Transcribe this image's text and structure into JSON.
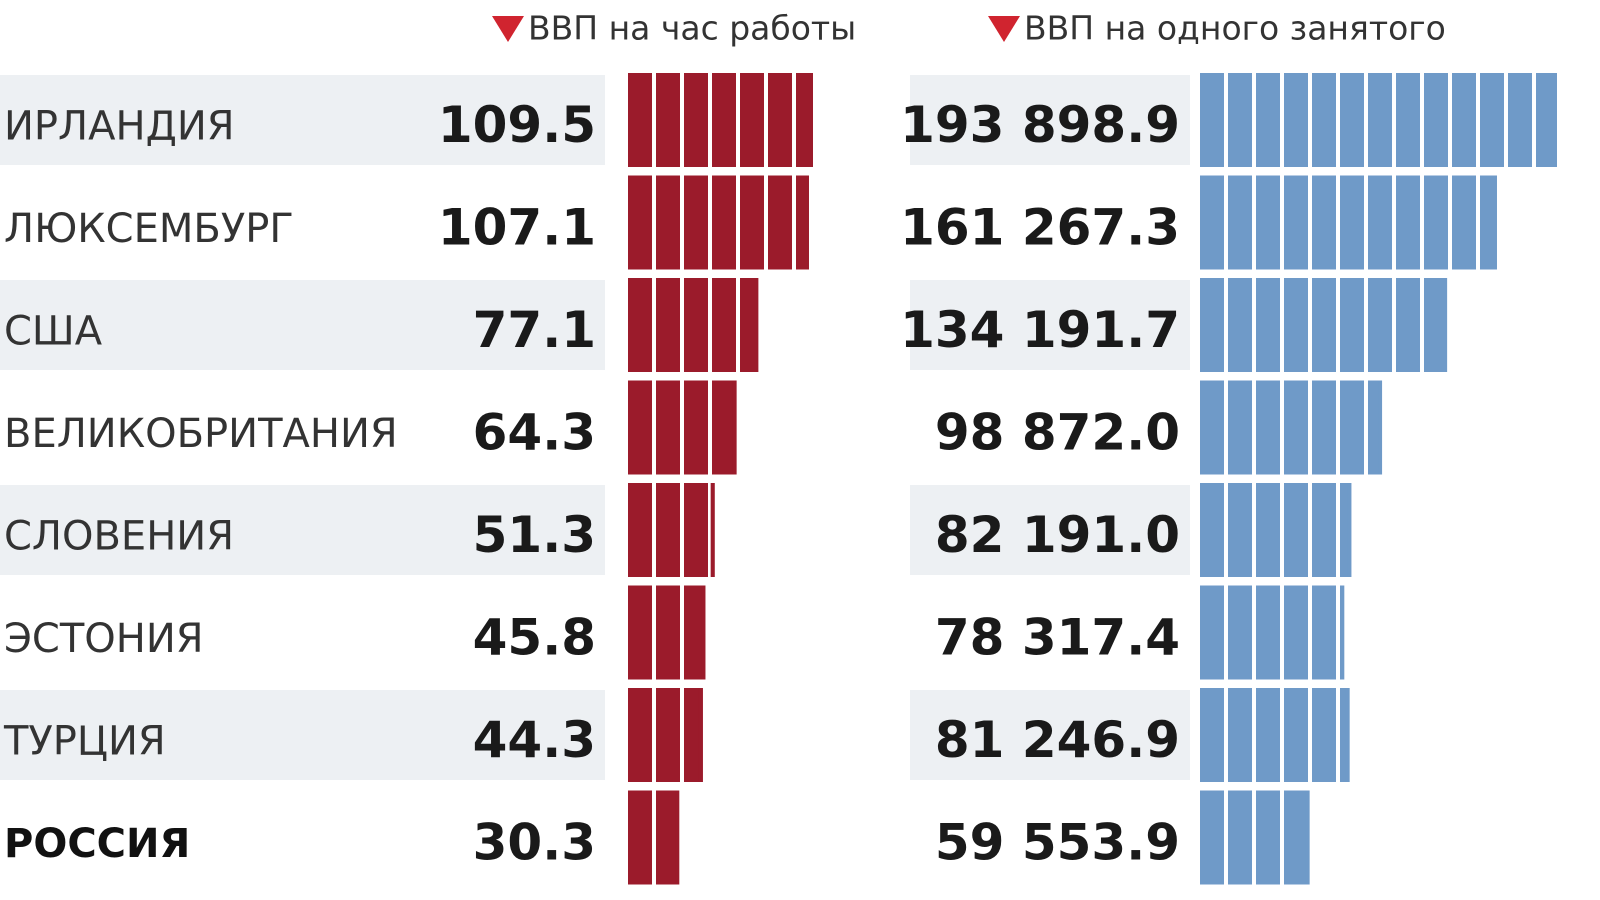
{
  "chart_data": {
    "type": "bar",
    "categories": [
      "ИРЛАНДИЯ",
      "ЛЮКСЕМБУРГ",
      "США",
      "ВЕЛИКОБРИТАНИЯ",
      "СЛОВЕНИЯ",
      "ЭСТОНИЯ",
      "ТУРЦИЯ",
      "РОССИЯ"
    ],
    "series": [
      {
        "name": "ВВП на час работы",
        "color": "#9b1b2b",
        "values": [
          109.5,
          107.1,
          77.1,
          64.3,
          51.3,
          45.8,
          44.3,
          30.3
        ]
      },
      {
        "name": "ВВП на одного занятого",
        "color": "#6f9ac8",
        "values": [
          193898.9,
          161267.3,
          134191.7,
          98872.0,
          82191.0,
          78317.4,
          81246.9,
          59553.9
        ],
        "value_labels": [
          "193 898.9",
          "161 267.3",
          "134 191.7",
          "98 872.0",
          "82 191.0",
          "78 317.4",
          "81 246.9",
          "59 553.9"
        ]
      }
    ]
  }
}
